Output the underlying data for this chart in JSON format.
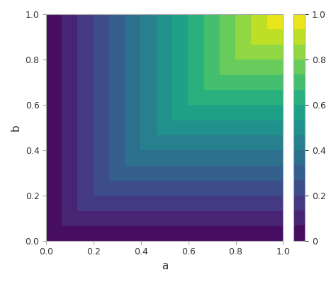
{
  "title": "",
  "xlabel": "a",
  "ylabel": "b",
  "xlim": [
    0,
    1
  ],
  "ylim": [
    0,
    1
  ],
  "colormap": "viridis",
  "n_levels": 15,
  "colorbar_ticks": [
    0.0,
    0.2,
    0.4,
    0.6,
    0.8,
    1.0
  ],
  "colorbar_ticklabels": [
    "0",
    "0.2",
    "0.4",
    "0.6",
    "0.8",
    "1.0"
  ],
  "grid_n": 400,
  "background_color": "#ffffff",
  "figsize": [
    4.74,
    3.98
  ],
  "dpi": 100,
  "xlabel_fontsize": 11,
  "ylabel_fontsize": 11,
  "tick_fontsize": 9,
  "colorbar_fontsize": 9
}
